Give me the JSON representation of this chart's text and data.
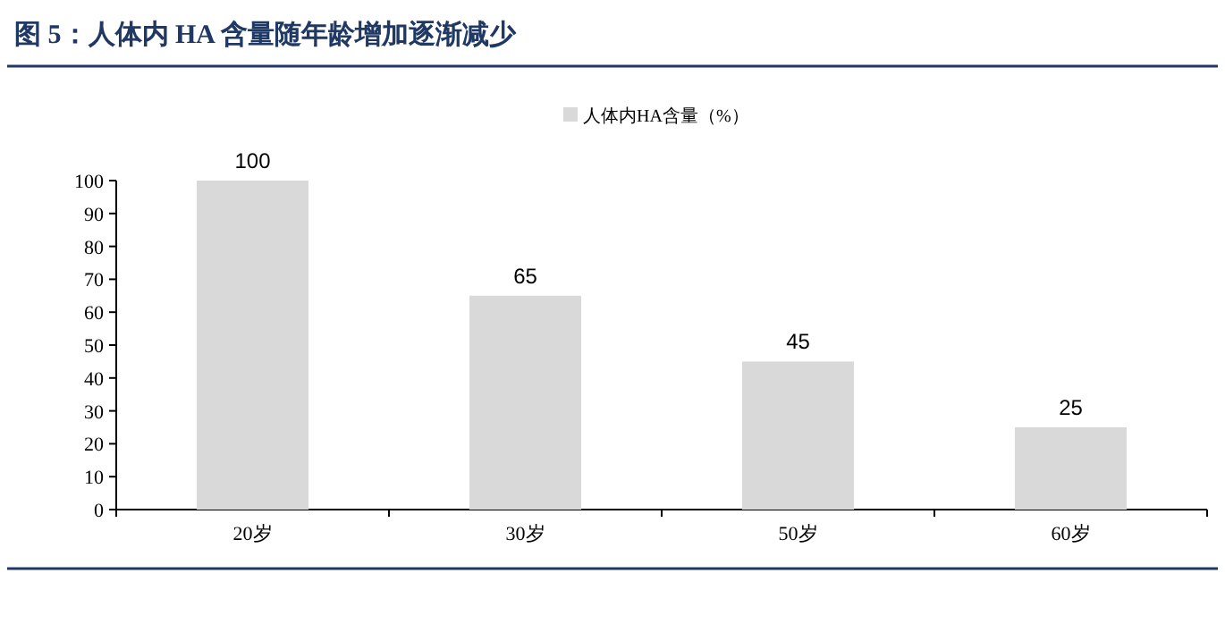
{
  "chart_data": {
    "type": "bar",
    "title": "图 5：人体内 HA 含量随年龄增加逐渐减少",
    "categories": [
      "20岁",
      "30岁",
      "50岁",
      "60岁"
    ],
    "series": [
      {
        "name": "人体内HA含量（%）",
        "color": "#d9d9d9",
        "values": [
          100,
          65,
          45,
          25
        ]
      }
    ],
    "ylim": [
      0,
      100
    ],
    "yticks": [
      0,
      10,
      20,
      30,
      40,
      50,
      60,
      70,
      80,
      90,
      100
    ],
    "data_labels": true,
    "legend": "top",
    "grid": false
  }
}
